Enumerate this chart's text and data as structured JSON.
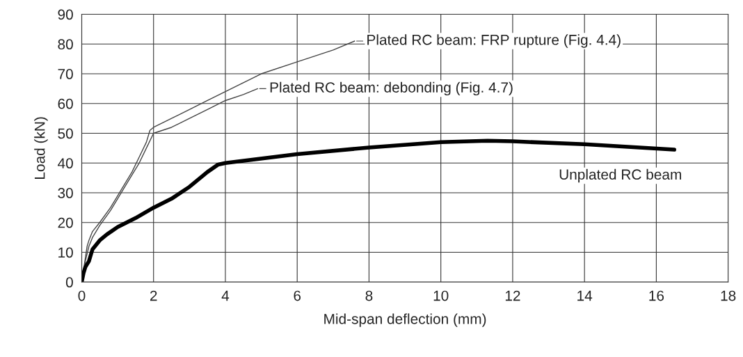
{
  "chart_data": {
    "type": "line",
    "xlabel": "Mid-span deflection (mm)",
    "ylabel": "Load (kN)",
    "xlim": [
      0,
      18
    ],
    "xticks": [
      0,
      2,
      4,
      6,
      8,
      10,
      12,
      14,
      16,
      18
    ],
    "ylim": [
      0,
      90
    ],
    "yticks": [
      0,
      10,
      20,
      30,
      40,
      50,
      60,
      70,
      80,
      90
    ],
    "grid": true,
    "marker": "none",
    "line_style": "solid",
    "annotations": [
      {
        "text": "Plated RC beam: FRP rupture (Fig. 4.4)",
        "x": 7.6,
        "y": 81
      },
      {
        "text": "Plated RC beam: debonding (Fig. 4.7)",
        "x": 4.9,
        "y": 65
      },
      {
        "text": "Unplated RC beam",
        "x": 16.5,
        "y": 44.5
      }
    ],
    "series": [
      {
        "color": "#444444",
        "x": [
          0,
          0.05,
          0.1,
          0.15,
          0.2,
          0.3,
          0.5,
          0.8,
          1.0,
          1.2,
          1.4,
          1.6,
          1.8,
          1.9,
          2.0,
          2.5,
          3.0,
          3.5,
          4.0,
          4.5,
          5.0,
          6.0,
          7.0,
          7.6
        ],
        "values": [
          0,
          4,
          8,
          12,
          14,
          17,
          20,
          25,
          29,
          33,
          37,
          42,
          47,
          51,
          52,
          55,
          58,
          61,
          64,
          67,
          70,
          74,
          78,
          81
        ]
      },
      {
        "color": "#444444",
        "x": [
          0,
          0.05,
          0.1,
          0.2,
          0.3,
          0.5,
          0.8,
          1.0,
          1.2,
          1.4,
          1.6,
          1.8,
          2.0,
          2.5,
          3.0,
          3.5,
          4.0,
          4.5,
          4.9
        ],
        "values": [
          0,
          3,
          7,
          12,
          15,
          19,
          24,
          28,
          32,
          36,
          40,
          45,
          50,
          52,
          55,
          58,
          61,
          63,
          65
        ]
      },
      {
        "color": "#000000",
        "x": [
          0,
          0.05,
          0.1,
          0.2,
          0.25,
          0.3,
          0.5,
          0.7,
          1.0,
          1.5,
          2.0,
          2.5,
          3.0,
          3.5,
          3.8,
          4.0,
          6,
          8,
          10,
          11.3,
          12,
          14,
          16.5
        ],
        "values": [
          0,
          3,
          5,
          7,
          9,
          11,
          14,
          16,
          18.5,
          21.5,
          25,
          28,
          32,
          37,
          39.5,
          40,
          43,
          45.2,
          47,
          47.5,
          47.3,
          46.3,
          44.5
        ]
      }
    ]
  }
}
